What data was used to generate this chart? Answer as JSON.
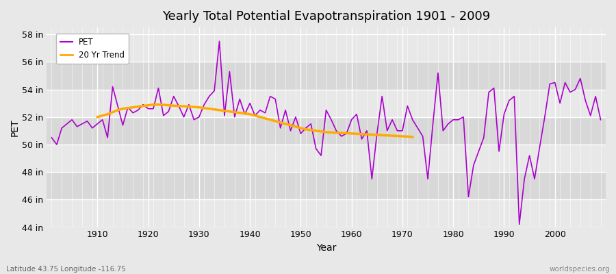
{
  "title": "Yearly Total Potential Evapotranspiration 1901 - 2009",
  "xlabel": "Year",
  "ylabel": "PET",
  "subtitle": "Latitude 43.75 Longitude -116.75",
  "watermark": "worldspecies.org",
  "background_color": "#e8e8e8",
  "band_light": "#e8e8e8",
  "band_dark": "#d8d8d8",
  "grid_major_color": "#ffffff",
  "grid_minor_color": "#d0d0d0",
  "pet_color": "#aa00cc",
  "trend_color": "#ffaa00",
  "years": [
    1901,
    1902,
    1903,
    1904,
    1905,
    1906,
    1907,
    1908,
    1909,
    1910,
    1911,
    1912,
    1913,
    1914,
    1915,
    1916,
    1917,
    1918,
    1919,
    1920,
    1921,
    1922,
    1923,
    1924,
    1925,
    1926,
    1927,
    1928,
    1929,
    1930,
    1931,
    1932,
    1933,
    1934,
    1935,
    1936,
    1937,
    1938,
    1939,
    1940,
    1941,
    1942,
    1943,
    1944,
    1945,
    1946,
    1947,
    1948,
    1949,
    1950,
    1951,
    1952,
    1953,
    1954,
    1955,
    1956,
    1957,
    1958,
    1959,
    1960,
    1961,
    1962,
    1963,
    1964,
    1965,
    1966,
    1967,
    1968,
    1969,
    1970,
    1971,
    1972,
    1973,
    1974,
    1975,
    1976,
    1977,
    1978,
    1979,
    1980,
    1981,
    1982,
    1983,
    1984,
    1985,
    1986,
    1987,
    1988,
    1989,
    1990,
    1991,
    1992,
    1993,
    1994,
    1995,
    1996,
    1997,
    1998,
    1999,
    2000,
    2001,
    2002,
    2003,
    2004,
    2005,
    2006,
    2007,
    2008,
    2009
  ],
  "pet_values": [
    50.5,
    50.0,
    51.2,
    51.5,
    51.8,
    51.3,
    51.5,
    51.7,
    51.2,
    51.5,
    51.8,
    50.5,
    54.2,
    52.8,
    51.4,
    52.7,
    52.3,
    52.5,
    52.9,
    52.6,
    52.6,
    54.1,
    52.1,
    52.4,
    53.5,
    52.8,
    52.0,
    52.9,
    51.8,
    52.0,
    52.9,
    53.5,
    53.9,
    57.5,
    52.1,
    55.3,
    52.0,
    53.3,
    52.2,
    53.0,
    52.1,
    52.5,
    52.3,
    53.5,
    53.3,
    51.2,
    52.5,
    51.0,
    52.0,
    50.8,
    51.2,
    51.5,
    49.7,
    49.2,
    52.5,
    51.8,
    51.0,
    50.6,
    50.8,
    51.8,
    52.2,
    50.4,
    51.0,
    47.5,
    50.8,
    53.5,
    51.0,
    51.8,
    51.0,
    51.0,
    52.8,
    51.8,
    51.2,
    50.6,
    47.5,
    51.5,
    55.2,
    51.0,
    51.5,
    51.8,
    51.8,
    52.0,
    46.2,
    48.5,
    49.5,
    50.5,
    53.8,
    54.1,
    49.5,
    52.2,
    53.2,
    53.5,
    44.2,
    47.5,
    49.2,
    47.5,
    49.8,
    52.0,
    54.4,
    54.5,
    53.0,
    54.5,
    53.8,
    54.0,
    54.8,
    53.2,
    52.1,
    53.5,
    51.8
  ],
  "trend_start_year": 1910,
  "trend_end_year": 1972,
  "trend_values_x": [
    1910,
    1911,
    1912,
    1913,
    1914,
    1915,
    1916,
    1917,
    1918,
    1919,
    1920,
    1921,
    1922,
    1923,
    1924,
    1925,
    1926,
    1927,
    1928,
    1929,
    1930,
    1931,
    1932,
    1933,
    1934,
    1935,
    1936,
    1937,
    1938,
    1939,
    1940,
    1941,
    1942,
    1943,
    1944,
    1945,
    1946,
    1947,
    1948,
    1949,
    1950,
    1951,
    1952,
    1953,
    1954,
    1955,
    1956,
    1957,
    1958,
    1959,
    1960,
    1961,
    1962,
    1963,
    1964,
    1965,
    1966,
    1967,
    1968,
    1969,
    1970,
    1971,
    1972
  ],
  "trend_values_y": [
    52.0,
    52.1,
    52.2,
    52.35,
    52.5,
    52.6,
    52.65,
    52.7,
    52.75,
    52.8,
    52.85,
    52.9,
    52.9,
    52.88,
    52.85,
    52.82,
    52.8,
    52.78,
    52.76,
    52.73,
    52.7,
    52.65,
    52.6,
    52.55,
    52.5,
    52.45,
    52.4,
    52.35,
    52.3,
    52.25,
    52.2,
    52.1,
    52.0,
    51.9,
    51.8,
    51.7,
    51.6,
    51.5,
    51.4,
    51.3,
    51.2,
    51.1,
    51.05,
    51.0,
    50.95,
    50.9,
    50.88,
    50.86,
    50.84,
    50.82,
    50.8,
    50.78,
    50.76,
    50.74,
    50.72,
    50.7,
    50.68,
    50.66,
    50.64,
    50.62,
    50.6,
    50.58,
    50.55
  ],
  "ylim": [
    44,
    58.5
  ],
  "yticks": [
    44,
    46,
    48,
    50,
    52,
    54,
    56,
    58
  ],
  "ytick_labels": [
    "44 in",
    "46 in",
    "48 in",
    "50 in",
    "52 in",
    "54 in",
    "56 in",
    "58 in"
  ],
  "xlim": [
    1900,
    2010
  ],
  "xticks": [
    1910,
    1920,
    1930,
    1940,
    1950,
    1960,
    1970,
    1980,
    1990,
    2000
  ]
}
